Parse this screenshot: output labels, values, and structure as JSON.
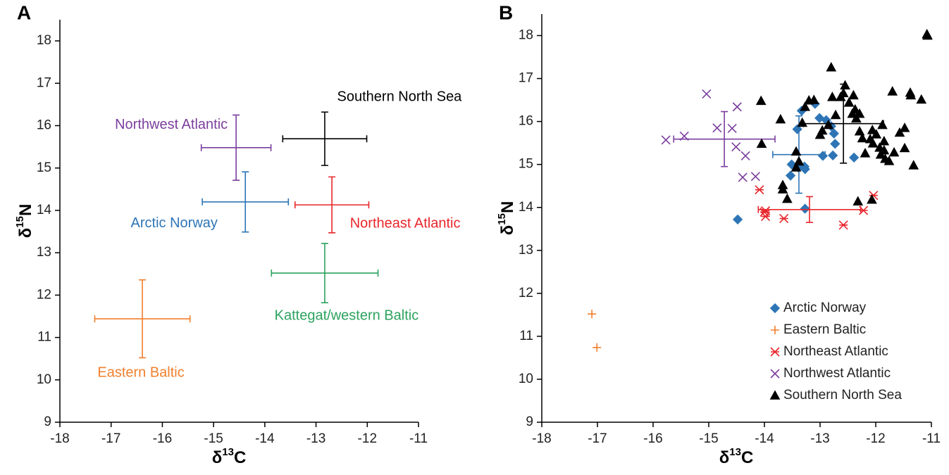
{
  "chart_data": [
    {
      "type": "errorbar",
      "panel_label": "A",
      "xlabel": [
        "δ",
        "13",
        "C"
      ],
      "ylabel": [
        "δ",
        "15",
        "N"
      ],
      "xlim": [
        -18,
        -11
      ],
      "ylim": [
        9,
        18.5
      ],
      "xticks": [
        -18,
        -17,
        -16,
        -15,
        -14,
        -13,
        -12,
        -11
      ],
      "yticks": [
        9,
        10,
        11,
        12,
        13,
        14,
        15,
        16,
        17,
        18
      ],
      "grid": false,
      "series": [
        {
          "name": "Southern North Sea",
          "color": "#000000",
          "x": -12.83,
          "y": 15.69,
          "x_error": 0.82,
          "y_error": 0.63
        },
        {
          "name": "Northwest Atlantic",
          "color": "#7b3f9e",
          "x": -14.56,
          "y": 15.48,
          "x_error": 0.68,
          "y_error": 0.77
        },
        {
          "name": "Arctic Norway",
          "color": "#2e75b6",
          "x": -14.38,
          "y": 14.2,
          "x_error": 0.84,
          "y_error": 0.71
        },
        {
          "name": "Northeast Atlantic",
          "color": "#e8262b",
          "x": -12.69,
          "y": 14.13,
          "x_error": 0.72,
          "y_error": 0.66
        },
        {
          "name": "Kattegat/western Baltic",
          "color": "#2ca25f",
          "x": -12.83,
          "y": 12.52,
          "x_error": 1.04,
          "y_error": 0.7
        },
        {
          "name": "Eastern Baltic",
          "color": "#f07f2c",
          "x": -16.39,
          "y": 11.44,
          "x_error": 0.93,
          "y_error": 0.92
        }
      ]
    },
    {
      "type": "scatter",
      "panel_label": "B",
      "xlabel": [
        "δ",
        "13",
        "C"
      ],
      "ylabel": [
        "δ",
        "15",
        "N"
      ],
      "xlim": [
        -18,
        -11
      ],
      "ylim": [
        9,
        18.5
      ],
      "xticks": [
        -18,
        -17,
        -16,
        -15,
        -14,
        -13,
        -12,
        -11
      ],
      "yticks": [
        9,
        10,
        11,
        12,
        13,
        14,
        15,
        16,
        17,
        18
      ],
      "grid": false,
      "legend": "lower right",
      "series": [
        {
          "name": "Arctic Norway",
          "color": "#2e75b6",
          "marker": "diamond",
          "x": [
            -13.33,
            -13.41,
            -13.09,
            -13.01,
            -12.89,
            -12.8,
            -12.75,
            -12.73,
            -12.77,
            -12.95,
            -12.39,
            -13.51,
            -13.39,
            -13.28,
            -13.27,
            -13.53,
            -13.27,
            -14.48
          ],
          "values": [
            16.25,
            15.82,
            16.41,
            16.08,
            16.03,
            15.89,
            15.72,
            15.48,
            15.21,
            15.2,
            15.16,
            15.0,
            14.93,
            14.95,
            14.89,
            14.74,
            13.97,
            13.72
          ],
          "mean": {
            "x": -13.38,
            "y": 15.23,
            "x_error": 0.47,
            "y_error": 0.9
          }
        },
        {
          "name": "Eastern Baltic",
          "color": "#f07f2c",
          "marker": "plus",
          "x": [
            -17.1,
            -17.01
          ],
          "values": [
            11.52,
            10.74
          ]
        },
        {
          "name": "Northeast Atlantic",
          "color": "#e8262b",
          "marker": "asterisk",
          "x": [
            -14.09,
            -14.0,
            -13.98,
            -13.65,
            -12.58,
            -12.22,
            -12.04,
            -13.98
          ],
          "values": [
            14.41,
            13.89,
            13.79,
            13.74,
            13.59,
            13.93,
            14.28,
            13.92
          ],
          "mean": {
            "x": -13.19,
            "y": 13.95,
            "x_error": 0.92,
            "y_error": 0.3
          }
        },
        {
          "name": "Northwest Atlantic",
          "color": "#7b3f9e",
          "marker": "x",
          "x": [
            -15.04,
            -15.77,
            -15.44,
            -14.85,
            -14.58,
            -14.49,
            -14.51,
            -14.34,
            -14.39,
            -14.16
          ],
          "values": [
            16.64,
            15.57,
            15.66,
            15.85,
            15.84,
            16.34,
            15.41,
            15.2,
            14.7,
            14.72
          ],
          "mean": {
            "x": -14.72,
            "y": 15.59,
            "x_error": 0.91,
            "y_error": 0.64
          }
        },
        {
          "name": "Southern North Sea",
          "color": "#000000",
          "marker": "triangle",
          "x": [
            -14.06,
            -14.05,
            -13.71,
            -13.67,
            -13.59,
            -13.43,
            -13.32,
            -13.27,
            -13.2,
            -13.11,
            -13.43,
            -13.38,
            -13.0,
            -12.96,
            -12.85,
            -12.8,
            -12.72,
            -12.63,
            -12.58,
            -12.55,
            -12.48,
            -12.42,
            -12.4,
            -12.37,
            -12.35,
            -12.29,
            -12.29,
            -12.24,
            -12.19,
            -12.1,
            -12.06,
            -12.05,
            -11.99,
            -11.93,
            -11.91,
            -11.88,
            -11.85,
            -11.85,
            -11.83,
            -11.76,
            -11.7,
            -11.67,
            -11.57,
            -11.48,
            -11.38,
            -11.32,
            -11.18,
            -11.37,
            -12.78,
            -11.48,
            -11.08,
            -11.07,
            -12.07,
            -12.32,
            -13.67
          ],
          "values": [
            16.48,
            15.48,
            16.05,
            14.52,
            14.2,
            14.93,
            15.97,
            16.34,
            16.49,
            16.5,
            15.3,
            15.07,
            15.69,
            15.79,
            15.92,
            17.26,
            16.15,
            16.57,
            16.66,
            16.84,
            16.44,
            16.18,
            16.61,
            16.28,
            16.07,
            15.77,
            16.18,
            15.61,
            15.26,
            15.59,
            15.8,
            15.49,
            15.7,
            15.39,
            15.23,
            15.92,
            15.54,
            15.33,
            15.13,
            15.08,
            16.7,
            15.28,
            15.74,
            15.38,
            16.67,
            14.98,
            16.51,
            16.61,
            16.57,
            15.85,
            18.03,
            18.0,
            14.18,
            14.14,
            14.42
          ],
          "mean": {
            "x": -12.58,
            "y": 15.95,
            "x_error": 0.72,
            "y_error": 0.92
          }
        }
      ]
    }
  ]
}
